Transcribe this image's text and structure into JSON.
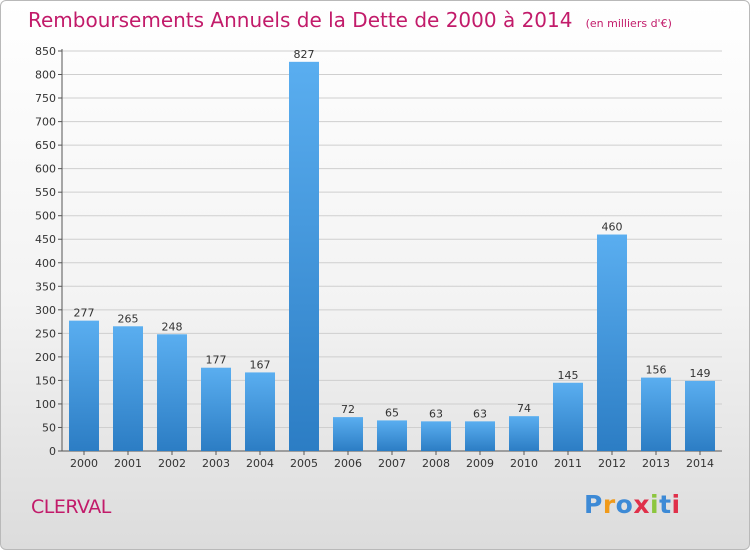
{
  "header": {
    "title": "Remboursements Annuels de la Dette de 2000 à 2014",
    "subtitle": "(en milliers d'€)"
  },
  "footer": {
    "place": "CLERVAL",
    "brand": "Proxiti"
  },
  "brand_letters": [
    {
      "char": "P",
      "color": "#3d8ad6"
    },
    {
      "char": "r",
      "color": "#f09a1a"
    },
    {
      "char": "o",
      "color": "#3d8ad6"
    },
    {
      "char": "x",
      "color": "#e0304a"
    },
    {
      "char": "i",
      "color": "#8cc63e"
    },
    {
      "char": "t",
      "color": "#3d8ad6"
    },
    {
      "char": "i",
      "color": "#e0304a"
    }
  ],
  "colors": {
    "title": "#c21b6a",
    "bar_top": "#5aaef0",
    "bar_bottom": "#2c7dc4",
    "grid": "#cfcfcf",
    "text": "#333333"
  },
  "chart_data": {
    "type": "bar",
    "categories": [
      "2000",
      "2001",
      "2002",
      "2003",
      "2004",
      "2005",
      "2006",
      "2007",
      "2008",
      "2009",
      "2010",
      "2011",
      "2012",
      "2013",
      "2014"
    ],
    "values": [
      277,
      265,
      248,
      177,
      167,
      827,
      72,
      65,
      63,
      63,
      74,
      145,
      460,
      156,
      149
    ],
    "title": "Remboursements Annuels de la Dette de 2000 à 2014",
    "subtitle": "(en milliers d'€)",
    "ylim": [
      0,
      850
    ],
    "yticks": [
      0,
      50,
      100,
      150,
      200,
      250,
      300,
      350,
      400,
      450,
      500,
      550,
      600,
      650,
      700,
      750,
      800,
      850
    ],
    "grid": true,
    "data_labels": true
  }
}
